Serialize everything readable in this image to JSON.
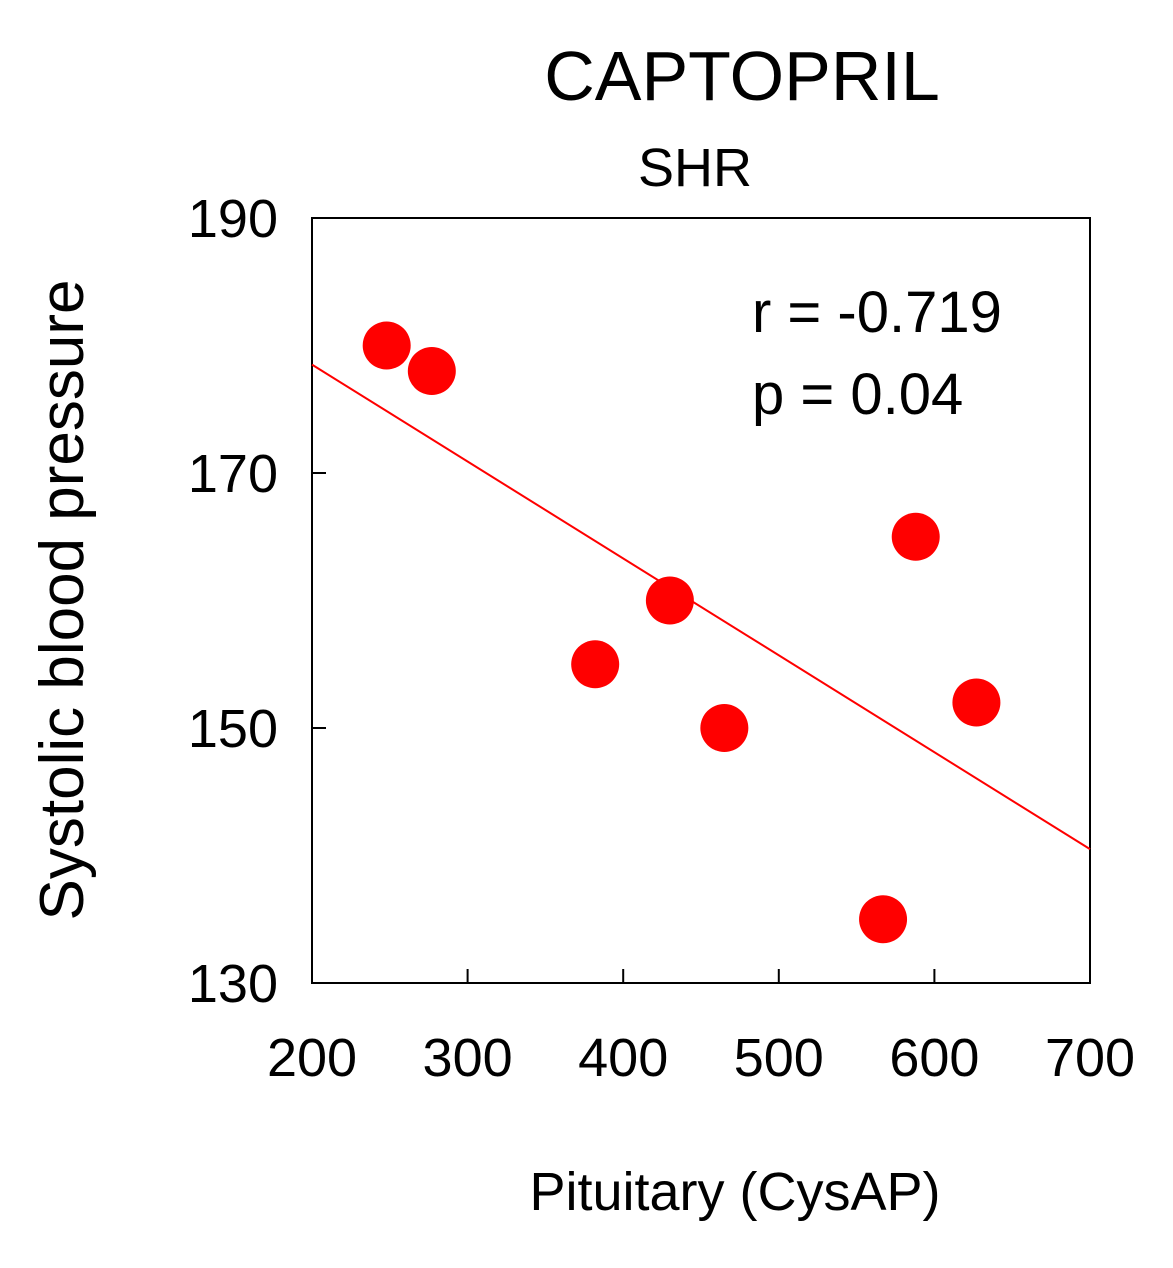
{
  "chart_data": {
    "type": "scatter",
    "title": "CAPTOPRIL",
    "subtitle": "SHR",
    "xlabel": "Pituitary (CysAP)",
    "ylabel": "Systolic blood pressure",
    "xlim": [
      200,
      700
    ],
    "ylim": [
      130,
      190
    ],
    "xticks": [
      200,
      300,
      400,
      500,
      600,
      700
    ],
    "yticks": [
      130,
      150,
      170,
      190
    ],
    "xtick_labels": [
      "200",
      "300",
      "400",
      "500",
      "600",
      "700"
    ],
    "ytick_labels": [
      "130",
      "150",
      "170",
      "190"
    ],
    "grid": false,
    "series": [
      {
        "name": "SHR",
        "color": "#ff0000",
        "points": [
          {
            "x": 248,
            "y": 180
          },
          {
            "x": 277,
            "y": 178
          },
          {
            "x": 382,
            "y": 155
          },
          {
            "x": 430,
            "y": 160
          },
          {
            "x": 465,
            "y": 150
          },
          {
            "x": 567,
            "y": 135
          },
          {
            "x": 588,
            "y": 165
          },
          {
            "x": 627,
            "y": 152
          }
        ]
      }
    ],
    "regression_line": {
      "color": "#ff0000",
      "x": [
        200,
        700
      ],
      "y": [
        178.5,
        140.5
      ]
    },
    "annotations": [
      "r = -0.719",
      "p = 0.04"
    ]
  }
}
